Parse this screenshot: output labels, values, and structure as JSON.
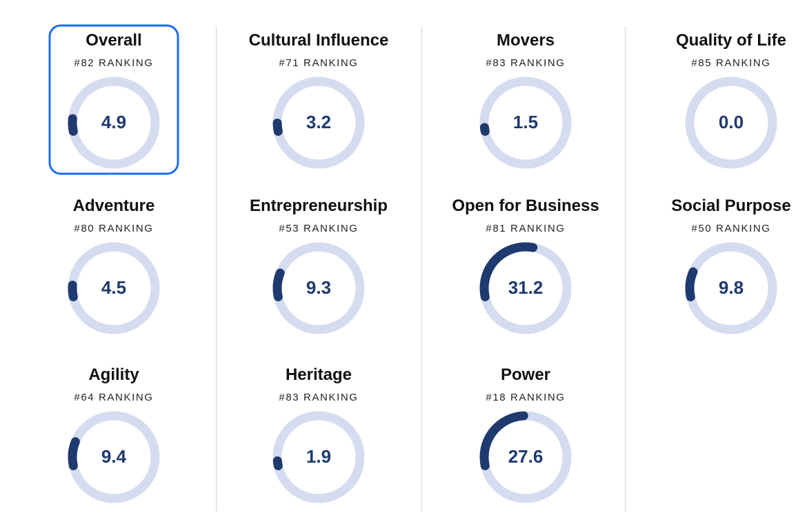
{
  "cards": [
    {
      "title": "Overall",
      "ranking": "#82 RANKING",
      "score": 4.9,
      "score_label": "4.9"
    },
    {
      "title": "Cultural Influence",
      "ranking": "#71 RANKING",
      "score": 3.2,
      "score_label": "3.2"
    },
    {
      "title": "Movers",
      "ranking": "#83 RANKING",
      "score": 1.5,
      "score_label": "1.5"
    },
    {
      "title": "Quality of Life",
      "ranking": "#85 RANKING",
      "score": 0,
      "score_label": "0.0"
    },
    {
      "title": "Adventure",
      "ranking": "#80 RANKING",
      "score": 4.5,
      "score_label": "4.5"
    },
    {
      "title": "Entrepreneurship",
      "ranking": "#53 RANKING",
      "score": 9.3,
      "score_label": "9.3"
    },
    {
      "title": "Open for Business",
      "ranking": "#81 RANKING",
      "score": 31.2,
      "score_label": "31.2"
    },
    {
      "title": "Social Purpose",
      "ranking": "#50 RANKING",
      "score": 9.8,
      "score_label": "9.8"
    },
    {
      "title": "Agility",
      "ranking": "#64 RANKING",
      "score": 9.4,
      "score_label": "9.4"
    },
    {
      "title": "Heritage",
      "ranking": "#83 RANKING",
      "score": 1.9,
      "score_label": "1.9"
    },
    {
      "title": "Power",
      "ranking": "#18 RANKING",
      "score": 27.6,
      "score_label": "27.6"
    }
  ]
}
